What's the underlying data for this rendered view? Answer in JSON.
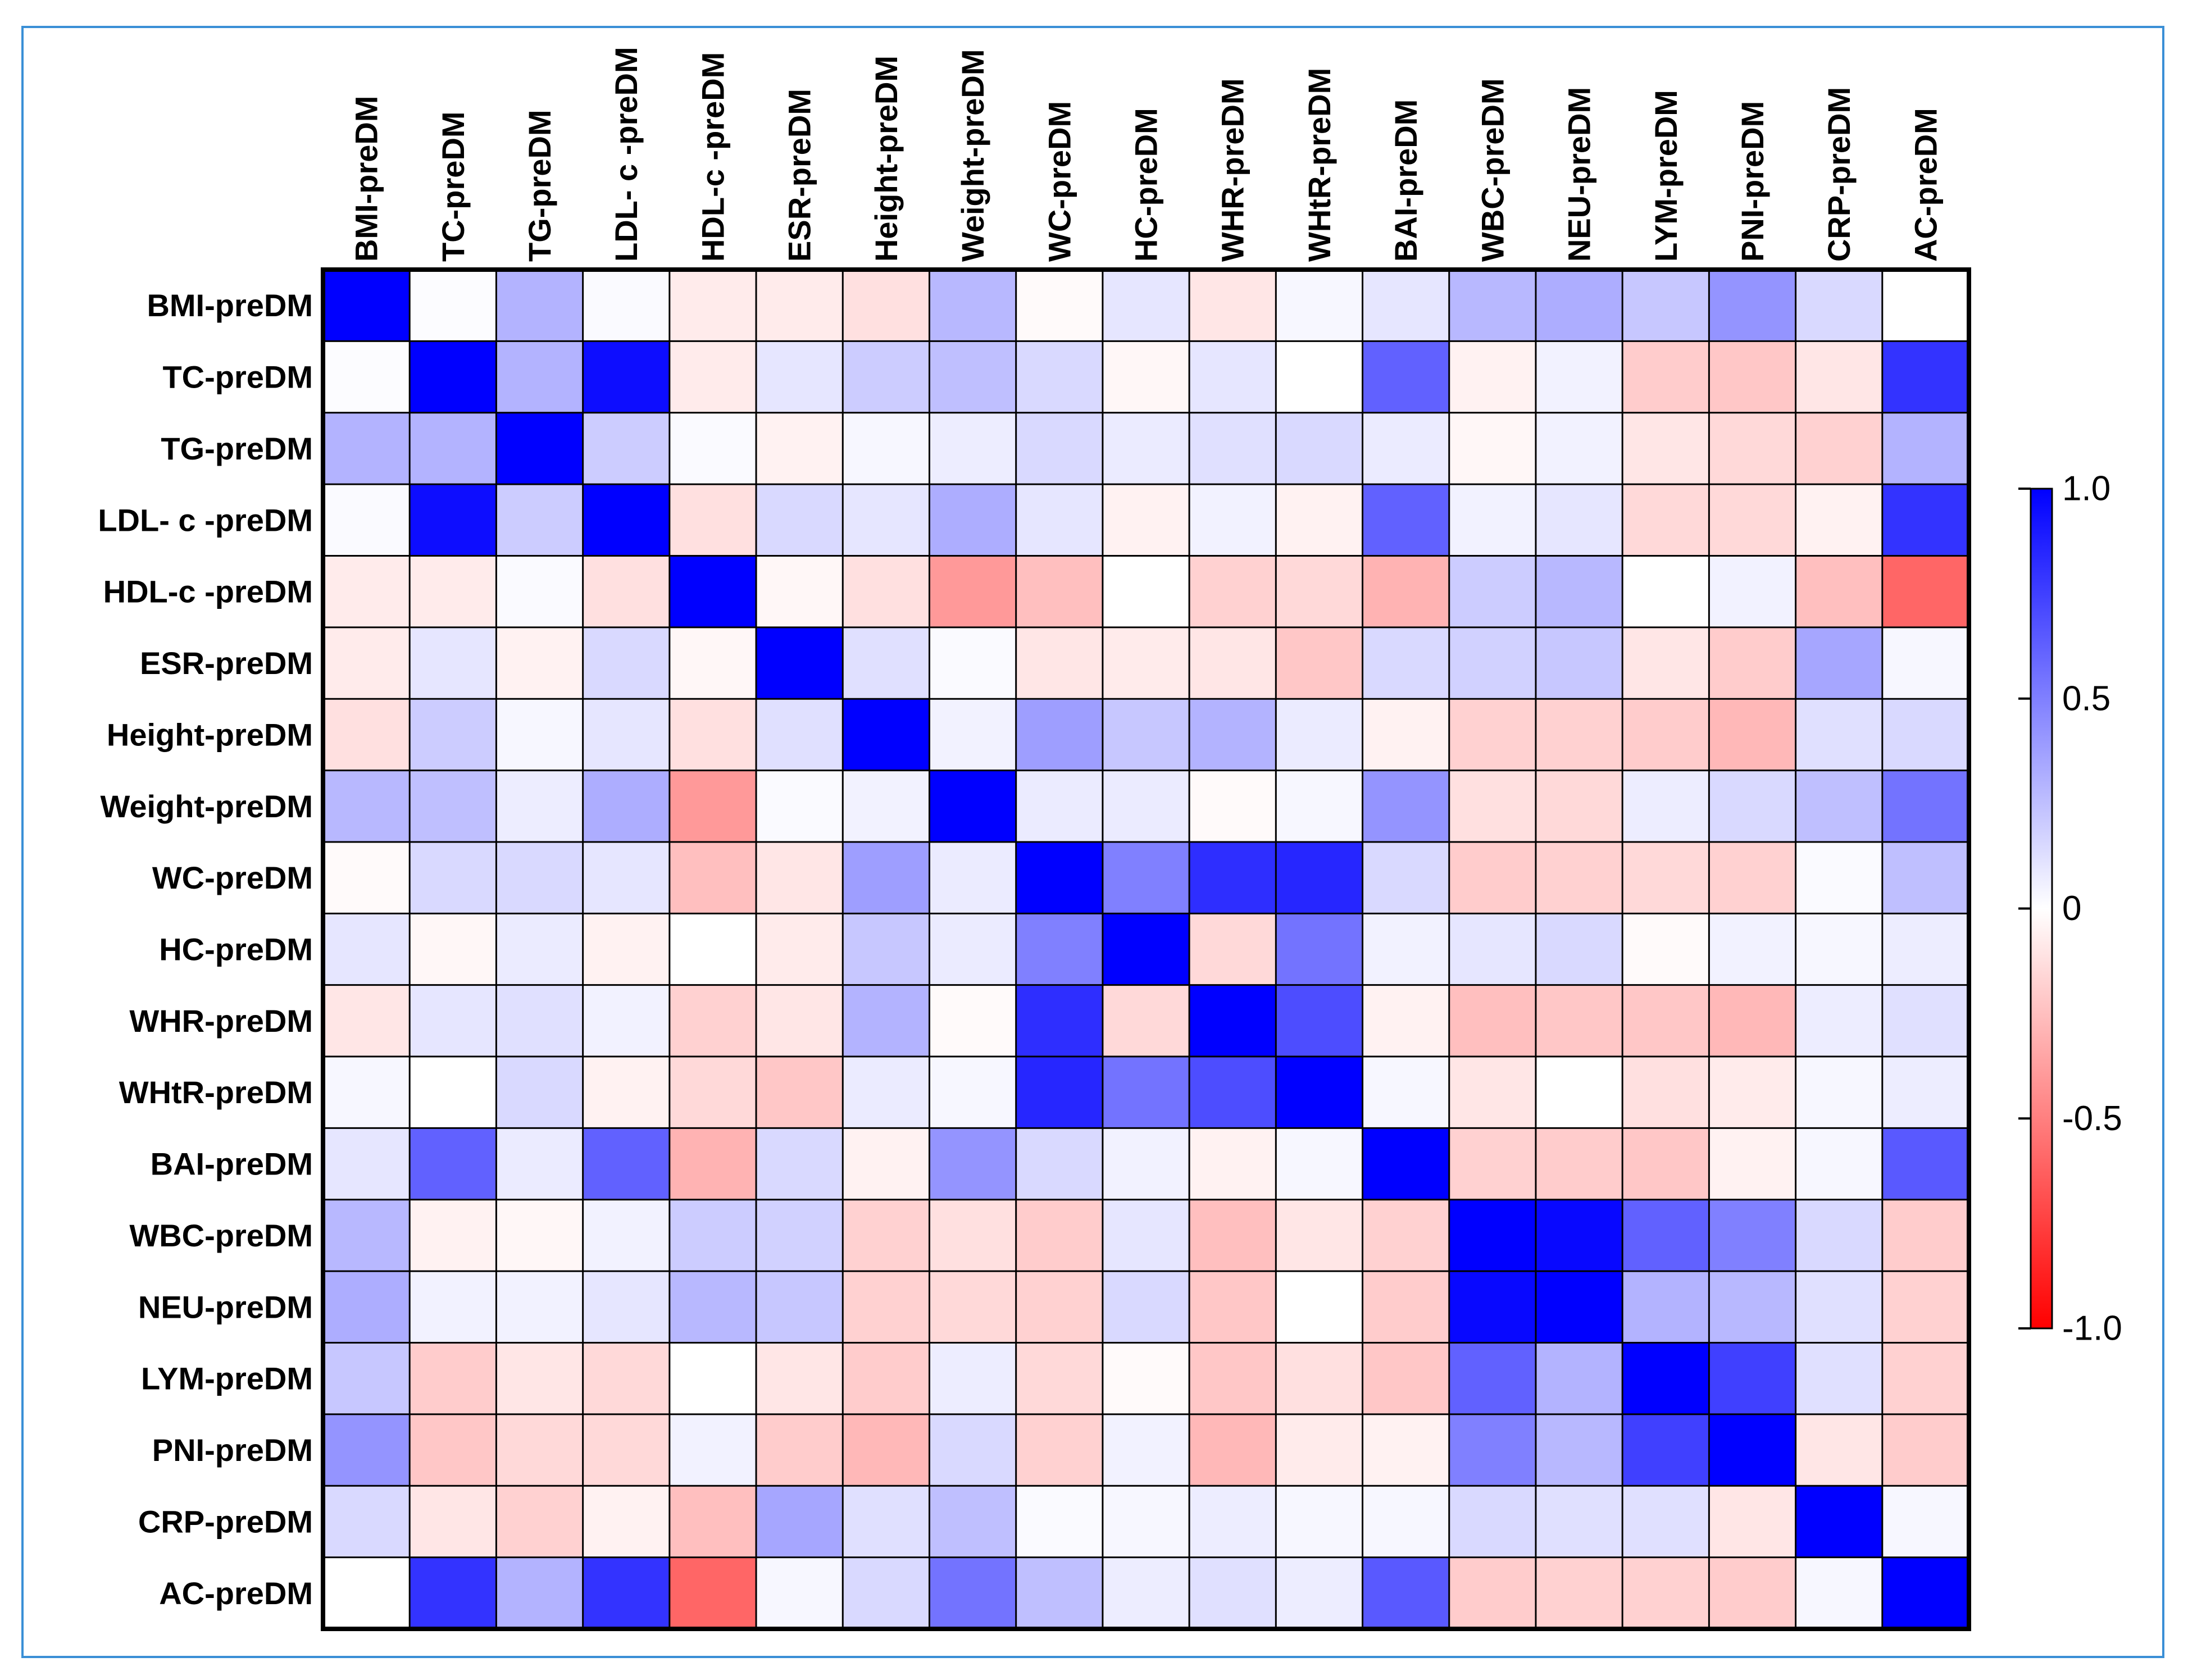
{
  "chart_data": {
    "type": "heatmap",
    "title": "",
    "labels": [
      "BMI-preDM",
      "TC-preDM",
      "TG-preDM",
      "LDL- c -preDM",
      "HDL-c -preDM",
      "ESR-preDM",
      "Height-preDM",
      "Weight-preDM",
      "WC-preDM",
      "HC-preDM",
      "WHR-preDM",
      "WHtR-preDM",
      "BAI-preDM",
      "WBC-preDM",
      "NEU-preDM",
      "LYM-preDM",
      "PNI-preDM",
      "CRP-preDM",
      "AC-preDM"
    ],
    "matrix": [
      [
        1.0,
        0.01,
        0.3,
        0.02,
        -0.08,
        -0.08,
        -0.12,
        0.28,
        -0.02,
        0.1,
        -0.1,
        0.03,
        0.1,
        0.28,
        0.32,
        0.22,
        0.42,
        0.15,
        0.0
      ],
      [
        0.01,
        1.0,
        0.3,
        0.95,
        -0.08,
        0.1,
        0.2,
        0.25,
        0.15,
        -0.03,
        0.1,
        0.0,
        0.62,
        -0.05,
        0.05,
        -0.2,
        -0.22,
        -0.1,
        0.8
      ],
      [
        0.3,
        0.3,
        1.0,
        0.2,
        0.02,
        -0.05,
        0.03,
        0.07,
        0.15,
        0.08,
        0.12,
        0.15,
        0.08,
        -0.03,
        0.05,
        -0.1,
        -0.15,
        -0.18,
        0.3
      ],
      [
        0.02,
        0.95,
        0.2,
        1.0,
        -0.12,
        0.15,
        0.1,
        0.32,
        0.1,
        -0.05,
        0.05,
        -0.05,
        0.62,
        0.05,
        0.1,
        -0.15,
        -0.15,
        -0.05,
        0.8
      ],
      [
        -0.08,
        -0.08,
        0.02,
        -0.12,
        1.0,
        -0.03,
        -0.12,
        -0.4,
        -0.25,
        0.0,
        -0.18,
        -0.15,
        -0.3,
        0.2,
        0.28,
        0.0,
        0.05,
        -0.25,
        -0.6
      ],
      [
        -0.08,
        0.1,
        -0.05,
        0.15,
        -0.03,
        1.0,
        0.12,
        0.02,
        -0.1,
        -0.08,
        -0.1,
        -0.22,
        0.15,
        0.18,
        0.22,
        -0.1,
        -0.2,
        0.35,
        0.03
      ],
      [
        -0.12,
        0.2,
        0.03,
        0.1,
        -0.12,
        0.12,
        1.0,
        0.05,
        0.38,
        0.22,
        0.3,
        0.08,
        -0.05,
        -0.18,
        -0.18,
        -0.2,
        -0.28,
        0.12,
        0.15
      ],
      [
        0.28,
        0.25,
        0.07,
        0.32,
        -0.4,
        0.02,
        0.05,
        1.0,
        0.08,
        0.08,
        -0.02,
        0.03,
        0.42,
        -0.12,
        -0.15,
        0.07,
        0.15,
        0.25,
        0.55
      ],
      [
        -0.02,
        0.15,
        0.15,
        0.1,
        -0.25,
        -0.1,
        0.38,
        0.08,
        1.0,
        0.5,
        0.82,
        0.85,
        0.15,
        -0.2,
        -0.18,
        -0.15,
        -0.18,
        0.02,
        0.25
      ],
      [
        0.1,
        -0.03,
        0.08,
        -0.05,
        0.0,
        -0.08,
        0.22,
        0.08,
        0.5,
        1.0,
        -0.15,
        0.55,
        0.05,
        0.1,
        0.15,
        -0.02,
        0.05,
        0.03,
        0.07
      ],
      [
        -0.1,
        0.1,
        0.12,
        0.05,
        -0.18,
        -0.1,
        0.3,
        -0.02,
        0.82,
        -0.15,
        1.0,
        0.7,
        -0.05,
        -0.25,
        -0.22,
        -0.22,
        -0.28,
        0.07,
        0.12
      ],
      [
        0.03,
        0.0,
        0.15,
        -0.05,
        -0.15,
        -0.22,
        0.08,
        0.03,
        0.85,
        0.55,
        0.7,
        1.0,
        0.03,
        -0.1,
        0.0,
        -0.12,
        -0.08,
        0.03,
        0.07
      ],
      [
        0.1,
        0.62,
        0.08,
        0.62,
        -0.3,
        0.15,
        -0.05,
        0.42,
        0.15,
        0.05,
        -0.05,
        0.03,
        1.0,
        -0.18,
        -0.2,
        -0.22,
        -0.05,
        0.03,
        0.65
      ],
      [
        0.28,
        -0.05,
        -0.03,
        0.05,
        0.2,
        0.18,
        -0.18,
        -0.12,
        -0.2,
        0.1,
        -0.25,
        -0.1,
        -0.18,
        1.0,
        0.97,
        0.62,
        0.5,
        0.15,
        -0.2
      ],
      [
        0.32,
        0.05,
        0.05,
        0.1,
        0.28,
        0.22,
        -0.18,
        -0.15,
        -0.18,
        0.15,
        -0.22,
        0.0,
        -0.2,
        0.97,
        1.0,
        0.3,
        0.28,
        0.12,
        -0.18
      ],
      [
        0.22,
        -0.2,
        -0.1,
        -0.15,
        0.0,
        -0.1,
        -0.2,
        0.07,
        -0.15,
        -0.02,
        -0.22,
        -0.12,
        -0.22,
        0.62,
        0.3,
        1.0,
        0.75,
        0.12,
        -0.18
      ],
      [
        0.42,
        -0.22,
        -0.15,
        -0.15,
        0.05,
        -0.2,
        -0.28,
        0.15,
        -0.18,
        0.05,
        -0.28,
        -0.08,
        -0.05,
        0.5,
        0.28,
        0.75,
        1.0,
        -0.1,
        -0.2
      ],
      [
        0.15,
        -0.1,
        -0.18,
        -0.05,
        -0.25,
        0.35,
        0.12,
        0.25,
        0.02,
        0.03,
        0.07,
        0.03,
        0.03,
        0.15,
        0.12,
        0.12,
        -0.1,
        1.0,
        0.03
      ],
      [
        0.0,
        0.8,
        0.3,
        0.8,
        -0.6,
        0.03,
        0.15,
        0.55,
        0.25,
        0.07,
        0.12,
        0.07,
        0.65,
        -0.2,
        -0.18,
        -0.18,
        -0.2,
        0.03,
        1.0
      ]
    ],
    "color_scale": {
      "min": -1.0,
      "max": 1.0,
      "ticks": [
        "1.0",
        "0.5",
        "0",
        "-0.5",
        "-1.0"
      ],
      "low_color": "#ff0000",
      "mid_color": "#ffffff",
      "high_color": "#0000ff"
    }
  }
}
